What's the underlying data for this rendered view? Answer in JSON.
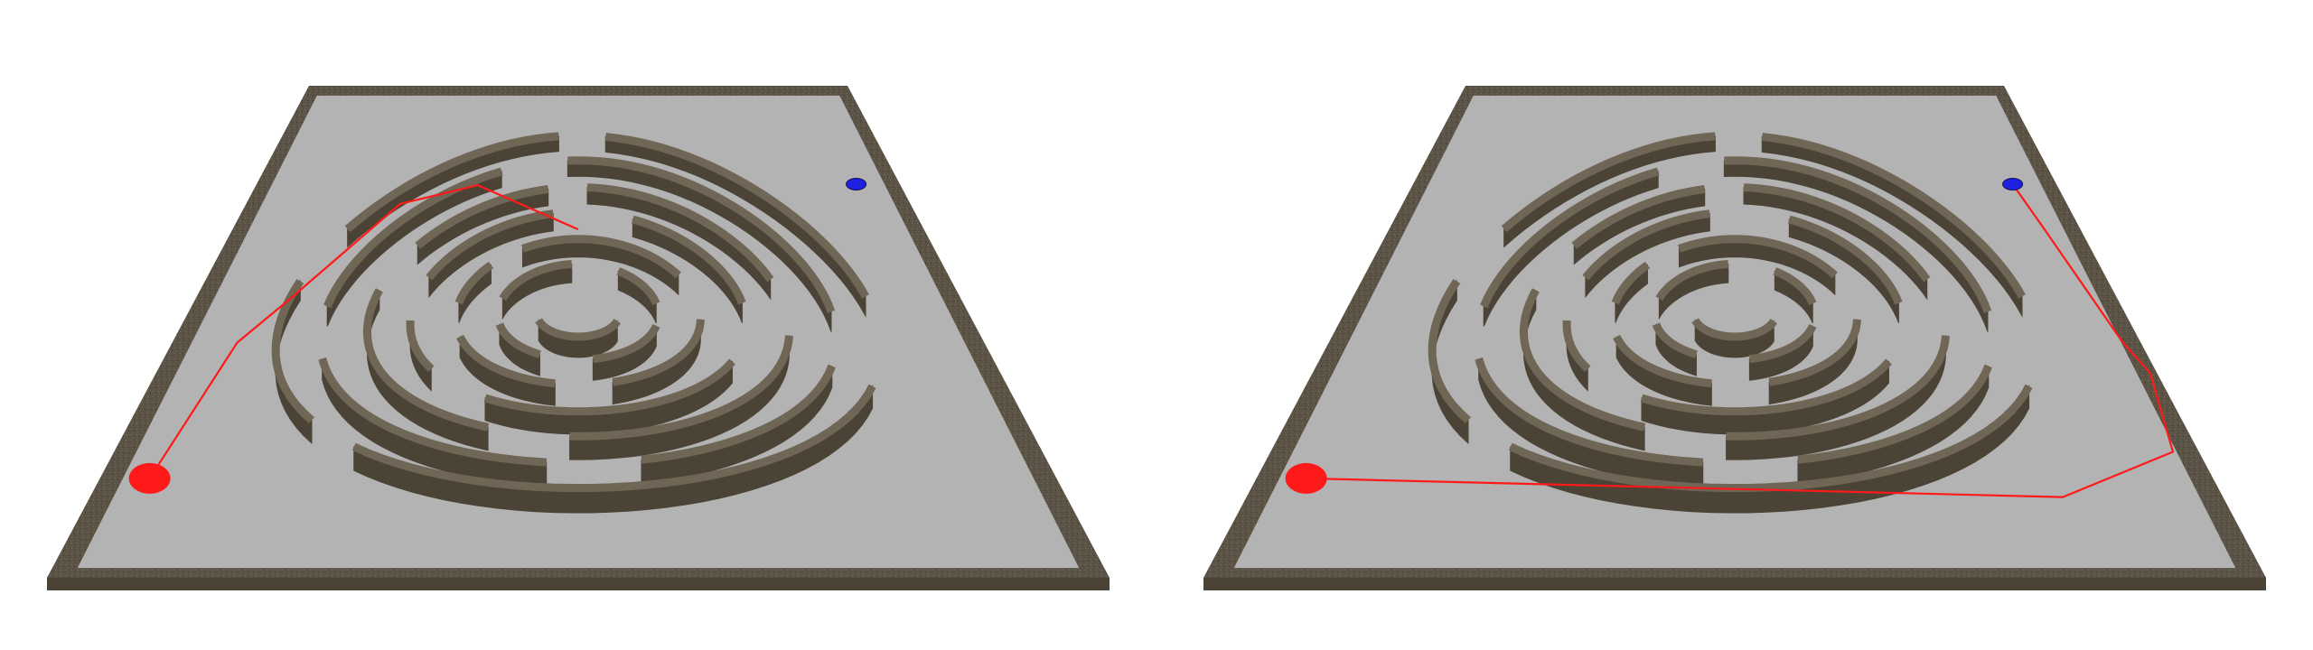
{
  "panels": [
    {
      "name": "left-panel",
      "path": [
        [
          0,
          -5.2
        ],
        [
          -3.9,
          -7.45
        ],
        [
          -6.7,
          -6.5
        ],
        [
          -9.45,
          -1.6
        ],
        [
          -10.5,
          0.55
        ],
        [
          -11.2,
          7.45
        ]
      ],
      "start_marker": {
        "label": "",
        "color": "#2020e0",
        "at": [
          10.8,
          -7.5
        ]
      },
      "goal_marker": {
        "label": "",
        "color": "#ff1a1a",
        "at": [
          -11.2,
          7.45
        ]
      }
    },
    {
      "name": "right-panel",
      "path": [
        [
          10.8,
          -7.5
        ],
        [
          11.2,
          -5.2
        ],
        [
          11.95,
          0.55
        ],
        [
          12.3,
          2.1
        ],
        [
          11.8,
          6.1
        ],
        [
          8.4,
          8.4
        ],
        [
          -11.2,
          7.45
        ]
      ],
      "start_marker": {
        "label": "",
        "color": "#2020e0",
        "at": [
          10.8,
          -7.5
        ]
      },
      "goal_marker": {
        "label": "",
        "color": "#ff1a1a",
        "at": [
          -11.2,
          7.45
        ]
      }
    }
  ],
  "colors": {
    "floor": "#b3b3b3",
    "border": "#5b5446",
    "wall_top": "#6f6656",
    "wall_side": "#4a4336",
    "path": "#ff1a1a"
  }
}
